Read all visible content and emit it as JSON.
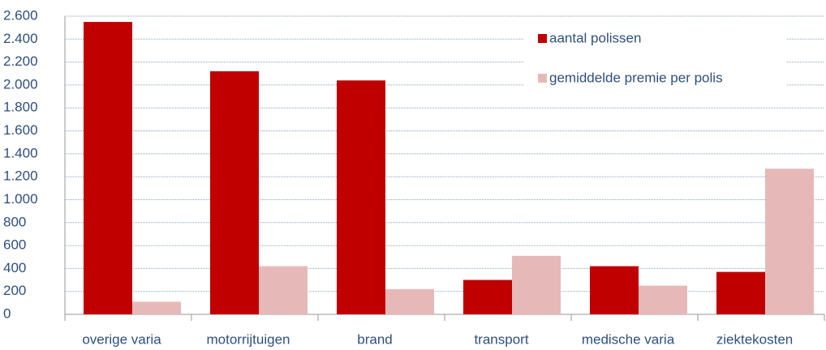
{
  "chart_data": {
    "type": "bar",
    "categories": [
      "overige varia",
      "motorrijtuigen",
      "brand",
      "transport",
      "medische varia",
      "ziektekosten"
    ],
    "series": [
      {
        "name": "aantal polissen",
        "color": "#c00000",
        "values": [
          2550,
          2120,
          2040,
          300,
          420,
          370
        ]
      },
      {
        "name": "gemiddelde premie per polis",
        "color": "#e6b9b8",
        "values": [
          110,
          420,
          220,
          510,
          250,
          1270
        ]
      }
    ],
    "ylim": [
      0,
      2600
    ],
    "yticks": [
      0,
      200,
      400,
      600,
      800,
      {
        "value": 1000,
        "label": "1.000"
      },
      {
        "value": 1200,
        "label": "1.200"
      },
      {
        "value": 1400,
        "label": "1.400"
      },
      {
        "value": 1600,
        "label": "1.600"
      },
      {
        "value": 1800,
        "label": "1.800"
      },
      {
        "value": 2000,
        "label": "2.000"
      },
      {
        "value": 2200,
        "label": "2.200"
      },
      {
        "value": 2400,
        "label": "2.400"
      },
      {
        "value": 2600,
        "label": "2.600"
      }
    ],
    "grid": true,
    "legend": "upper right"
  }
}
